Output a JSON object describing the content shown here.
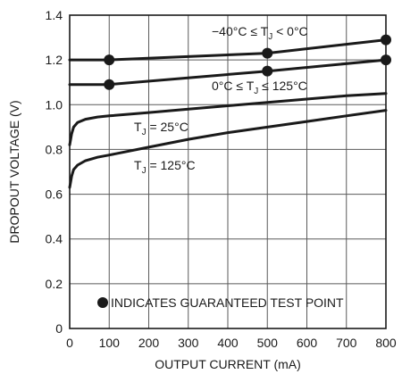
{
  "chart_data": {
    "type": "line",
    "xlabel": "OUTPUT CURRENT (mA)",
    "ylabel": "DROPOUT VOLTAGE (V)",
    "xlim": [
      0,
      800
    ],
    "ylim": [
      0,
      1.4
    ],
    "x_ticks": [
      "0",
      "100",
      "200",
      "300",
      "400",
      "500",
      "600",
      "700",
      "800"
    ],
    "y_ticks": [
      "0",
      "0.2",
      "0.4",
      "0.6",
      "0.8",
      "1.0",
      "1.2",
      "1.4"
    ],
    "grid": true,
    "series": [
      {
        "name": "−40°C ≤ TJ < 0°C",
        "label_main": "−40°C ≤ T",
        "label_sub": "J",
        "label_tail": " < 0°C",
        "points": [
          [
            0,
            1.2
          ],
          [
            100,
            1.2
          ],
          [
            500,
            1.23
          ],
          [
            800,
            1.29
          ]
        ],
        "markers": [
          [
            100,
            1.2
          ],
          [
            500,
            1.23
          ],
          [
            800,
            1.29
          ]
        ]
      },
      {
        "name": "0°C ≤ TJ ≤ 125°C",
        "label_main": "0°C ≤ T",
        "label_sub": "J",
        "label_tail": " ≤ 125°C",
        "points": [
          [
            0,
            1.09
          ],
          [
            100,
            1.09
          ],
          [
            500,
            1.15
          ],
          [
            800,
            1.2
          ]
        ],
        "markers": [
          [
            100,
            1.09
          ],
          [
            500,
            1.15
          ],
          [
            800,
            1.2
          ]
        ]
      },
      {
        "name": "TJ = 25°C",
        "label_main": "T",
        "label_sub": "J",
        "label_tail": " = 25°C",
        "points": [
          [
            0,
            0.82
          ],
          [
            5,
            0.87
          ],
          [
            10,
            0.9
          ],
          [
            20,
            0.92
          ],
          [
            40,
            0.935
          ],
          [
            70,
            0.945
          ],
          [
            100,
            0.95
          ],
          [
            200,
            0.965
          ],
          [
            300,
            0.98
          ],
          [
            400,
            0.995
          ],
          [
            500,
            1.01
          ],
          [
            600,
            1.025
          ],
          [
            700,
            1.04
          ],
          [
            800,
            1.05
          ]
        ],
        "markers": []
      },
      {
        "name": "TJ = 125°C",
        "label_main": "T",
        "label_sub": "J",
        "label_tail": " = 125°C",
        "points": [
          [
            0,
            0.63
          ],
          [
            5,
            0.68
          ],
          [
            10,
            0.71
          ],
          [
            20,
            0.73
          ],
          [
            40,
            0.75
          ],
          [
            70,
            0.765
          ],
          [
            100,
            0.775
          ],
          [
            200,
            0.81
          ],
          [
            300,
            0.845
          ],
          [
            400,
            0.875
          ],
          [
            500,
            0.9
          ],
          [
            600,
            0.925
          ],
          [
            700,
            0.95
          ],
          [
            800,
            0.975
          ]
        ],
        "markers": []
      }
    ],
    "annotation": "INDICATES GUARANTEED TEST POINT"
  }
}
